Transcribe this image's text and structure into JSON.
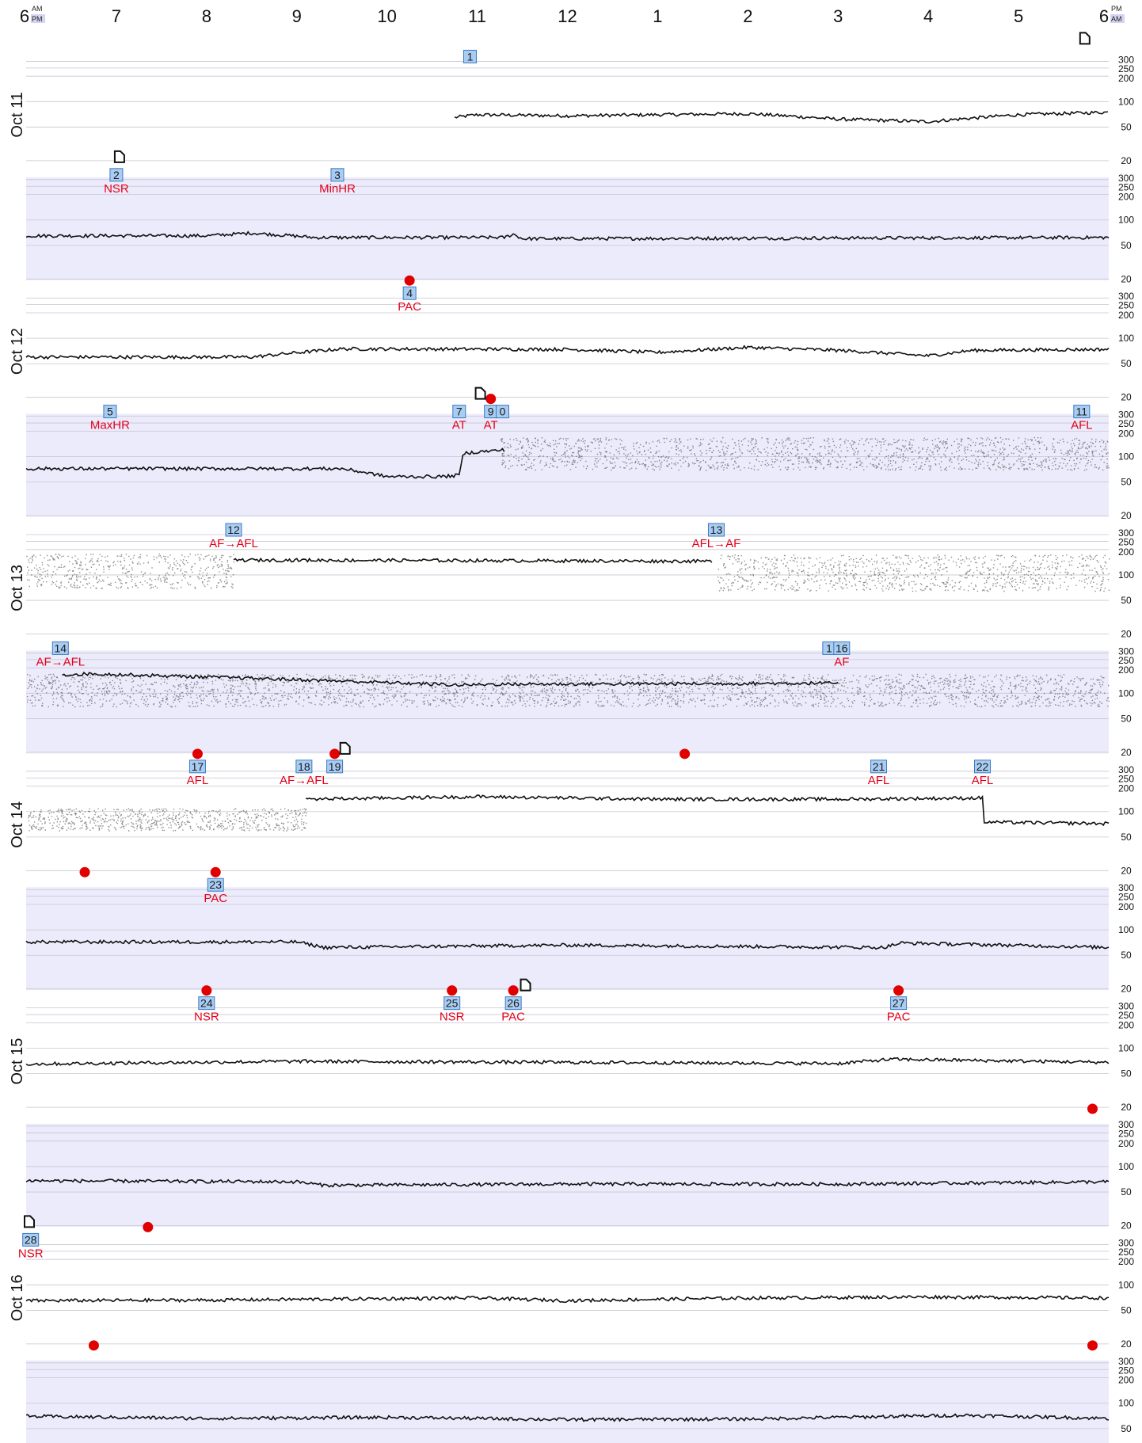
{
  "chart_data": {
    "type": "scatter",
    "title": "",
    "x_axis": {
      "unit": "time of day",
      "labels": [
        {
          "hour": 0,
          "text": "6",
          "top": "AM",
          "bottom": "PM"
        },
        {
          "hour": 1,
          "text": "7"
        },
        {
          "hour": 2,
          "text": "8"
        },
        {
          "hour": 3,
          "text": "9"
        },
        {
          "hour": 4,
          "text": "10"
        },
        {
          "hour": 5,
          "text": "11"
        },
        {
          "hour": 6,
          "text": "12"
        },
        {
          "hour": 7,
          "text": "1"
        },
        {
          "hour": 8,
          "text": "2"
        },
        {
          "hour": 9,
          "text": "3"
        },
        {
          "hour": 10,
          "text": "4"
        },
        {
          "hour": 11,
          "text": "5"
        },
        {
          "hour": 12,
          "text": "6",
          "top": "PM",
          "bottom": "AM"
        }
      ]
    },
    "y_axis": {
      "scale": "log",
      "ticks": [
        20,
        50,
        100,
        200,
        250,
        300
      ],
      "unit": "bpm"
    },
    "colors": {
      "trace": "#111111",
      "event_box": "#a9cdf2",
      "event_border": "#3c78c4",
      "event_label": "#e4001b",
      "marker": "#e00000",
      "shade": "#ecebfb",
      "grid": "#c6c6d2"
    },
    "rows": [
      {
        "day": "Oct 11",
        "shaded": false,
        "start": 4.75,
        "hr": [
          [
            4.75,
            65
          ],
          [
            5,
            70
          ],
          [
            6,
            68
          ],
          [
            7,
            70
          ],
          [
            8,
            72
          ],
          [
            9,
            62
          ],
          [
            10,
            58
          ],
          [
            11,
            70
          ],
          [
            12,
            75
          ]
        ],
        "events": [
          {
            "num": "1",
            "x": 4.92,
            "label": ""
          }
        ],
        "markers": [],
        "notes": [
          11.7
        ]
      },
      {
        "day": "",
        "shaded": true,
        "hr": [
          [
            0,
            65
          ],
          [
            2,
            65
          ],
          [
            2.5,
            70
          ],
          [
            3.2,
            62
          ],
          [
            5.3,
            62
          ],
          [
            5.4,
            68
          ],
          [
            5.5,
            60
          ],
          [
            12,
            62
          ]
        ],
        "events": [
          {
            "num": "2",
            "x": 1.0,
            "label": "NSR"
          },
          {
            "num": "3",
            "x": 3.45,
            "label": "MinHR"
          }
        ],
        "markers": [],
        "notes": [
          1.0
        ]
      },
      {
        "day": "Oct 12",
        "shaded": false,
        "hr": [
          [
            0,
            60
          ],
          [
            2.5,
            60
          ],
          [
            3.5,
            75
          ],
          [
            6,
            74
          ],
          [
            7,
            68
          ],
          [
            8,
            78
          ],
          [
            9,
            72
          ],
          [
            10,
            62
          ],
          [
            10.5,
            72
          ],
          [
            12,
            74
          ]
        ],
        "events": [
          {
            "num": "4",
            "x": 4.25,
            "label": "PAC"
          }
        ],
        "markers": [
          4.25
        ],
        "notes": []
      },
      {
        "day": "",
        "shaded": true,
        "hr": [
          [
            0,
            72
          ],
          [
            3.5,
            72
          ],
          [
            4,
            58
          ],
          [
            4.6,
            58
          ],
          [
            4.8,
            60
          ],
          [
            4.85,
            110
          ],
          [
            5.3,
            120
          ]
        ],
        "af": [
          [
            5.25,
            12,
            70,
            170
          ]
        ],
        "events": [
          {
            "num": "5",
            "x": 0.93,
            "label": "MaxHR"
          },
          {
            "num": "7",
            "x": 4.8,
            "label": "AT"
          },
          {
            "num": "9",
            "x": 5.15,
            "label": "AT"
          },
          {
            "num": "0",
            "x": 5.28,
            "label": ""
          },
          {
            "num": "11",
            "x": 11.7,
            "label": "AFL"
          }
        ],
        "markers": [
          5.15
        ],
        "notes": [
          5.0
        ]
      },
      {
        "day": "Oct 13",
        "shaded": false,
        "hr": [
          [
            2.3,
            150
          ],
          [
            5,
            148
          ],
          [
            7.6,
            145
          ]
        ],
        "af": [
          [
            0,
            2.3,
            70,
            180
          ],
          [
            7.65,
            12,
            65,
            175
          ]
        ],
        "events": [
          {
            "num": "12",
            "x": 2.3,
            "label": "AF→AFL"
          },
          {
            "num": "13",
            "x": 7.65,
            "label": "AFL→AF"
          }
        ],
        "markers": [],
        "notes": []
      },
      {
        "day": "",
        "shaded": true,
        "hr": [
          [
            0.4,
            165
          ],
          [
            0.7,
            170
          ],
          [
            4.8,
            125
          ],
          [
            5.2,
            128
          ],
          [
            7.6,
            130
          ],
          [
            9.0,
            132
          ]
        ],
        "af": [
          [
            0,
            12,
            70,
            170
          ]
        ],
        "events": [
          {
            "num": "14",
            "x": 0.38,
            "label": "AF→AFL"
          },
          {
            "num": "1",
            "x": 8.9,
            "label": ""
          },
          {
            "num": "16",
            "x": 9.04,
            "label": "AF"
          }
        ],
        "markers": [],
        "notes": []
      },
      {
        "day": "Oct 14",
        "shaded": false,
        "hr": [
          [
            3.1,
            140
          ],
          [
            5,
            150
          ],
          [
            7,
            140
          ],
          [
            9,
            140
          ],
          [
            10.6,
            145
          ],
          [
            10.62,
            75
          ],
          [
            12,
            72
          ]
        ],
        "af": [
          [
            0,
            3.1,
            60,
            110
          ]
        ],
        "events": [
          {
            "num": "17",
            "x": 1.9,
            "label": "AFL"
          },
          {
            "num": "18",
            "x": 3.08,
            "label": "AF→AFL"
          },
          {
            "num": "19",
            "x": 3.42,
            "label": ""
          },
          {
            "num": "21",
            "x": 9.45,
            "label": "AFL"
          },
          {
            "num": "22",
            "x": 10.6,
            "label": "AFL"
          }
        ],
        "markers": [
          1.9,
          3.42,
          7.3
        ],
        "notes": [
          3.5
        ]
      },
      {
        "day": "",
        "shaded": true,
        "hr": [
          [
            0,
            72
          ],
          [
            3,
            72
          ],
          [
            3.3,
            62
          ],
          [
            6,
            66
          ],
          [
            9.5,
            62
          ],
          [
            9.7,
            70
          ],
          [
            12,
            62
          ]
        ],
        "events": [
          {
            "num": "23",
            "x": 2.1,
            "label": "PAC"
          }
        ],
        "markers": [
          0.65,
          2.1
        ],
        "notes": []
      },
      {
        "day": "Oct 15",
        "shaded": false,
        "hr": [
          [
            0,
            65
          ],
          [
            3,
            70
          ],
          [
            6,
            68
          ],
          [
            9,
            66
          ],
          [
            9.6,
            74
          ],
          [
            12,
            68
          ]
        ],
        "events": [
          {
            "num": "24",
            "x": 2.0,
            "label": "NSR"
          },
          {
            "num": "25",
            "x": 4.72,
            "label": "NSR"
          },
          {
            "num": "26",
            "x": 5.4,
            "label": "PAC"
          },
          {
            "num": "27",
            "x": 9.67,
            "label": "PAC"
          }
        ],
        "markers": [
          2.0,
          4.72,
          5.4,
          9.67
        ],
        "notes": [
          5.5
        ]
      },
      {
        "day": "",
        "shaded": true,
        "hr": [
          [
            0,
            68
          ],
          [
            3,
            66
          ],
          [
            3.3,
            60
          ],
          [
            6,
            62
          ],
          [
            9,
            62
          ],
          [
            12,
            66
          ]
        ],
        "events": [],
        "markers": [
          11.82
        ],
        "notes": []
      },
      {
        "day": "Oct 16",
        "shaded": false,
        "hr": [
          [
            0,
            65
          ],
          [
            2,
            66
          ],
          [
            5,
            70
          ],
          [
            6,
            65
          ],
          [
            8,
            70
          ],
          [
            10,
            72
          ],
          [
            12,
            70
          ]
        ],
        "events": [
          {
            "num": "28",
            "x": 0.05,
            "label": "NSR"
          }
        ],
        "markers": [
          1.35
        ],
        "notes": [
          0.0
        ]
      },
      {
        "day": "",
        "shaded": true,
        "hr": [
          [
            0,
            70
          ],
          [
            2,
            66
          ],
          [
            4,
            68
          ],
          [
            6,
            64
          ],
          [
            8,
            65
          ],
          [
            9,
            68
          ],
          [
            10.4,
            72
          ],
          [
            12,
            66
          ]
        ],
        "events": [],
        "markers": [
          0.75,
          11.82
        ],
        "notes": []
      }
    ]
  }
}
